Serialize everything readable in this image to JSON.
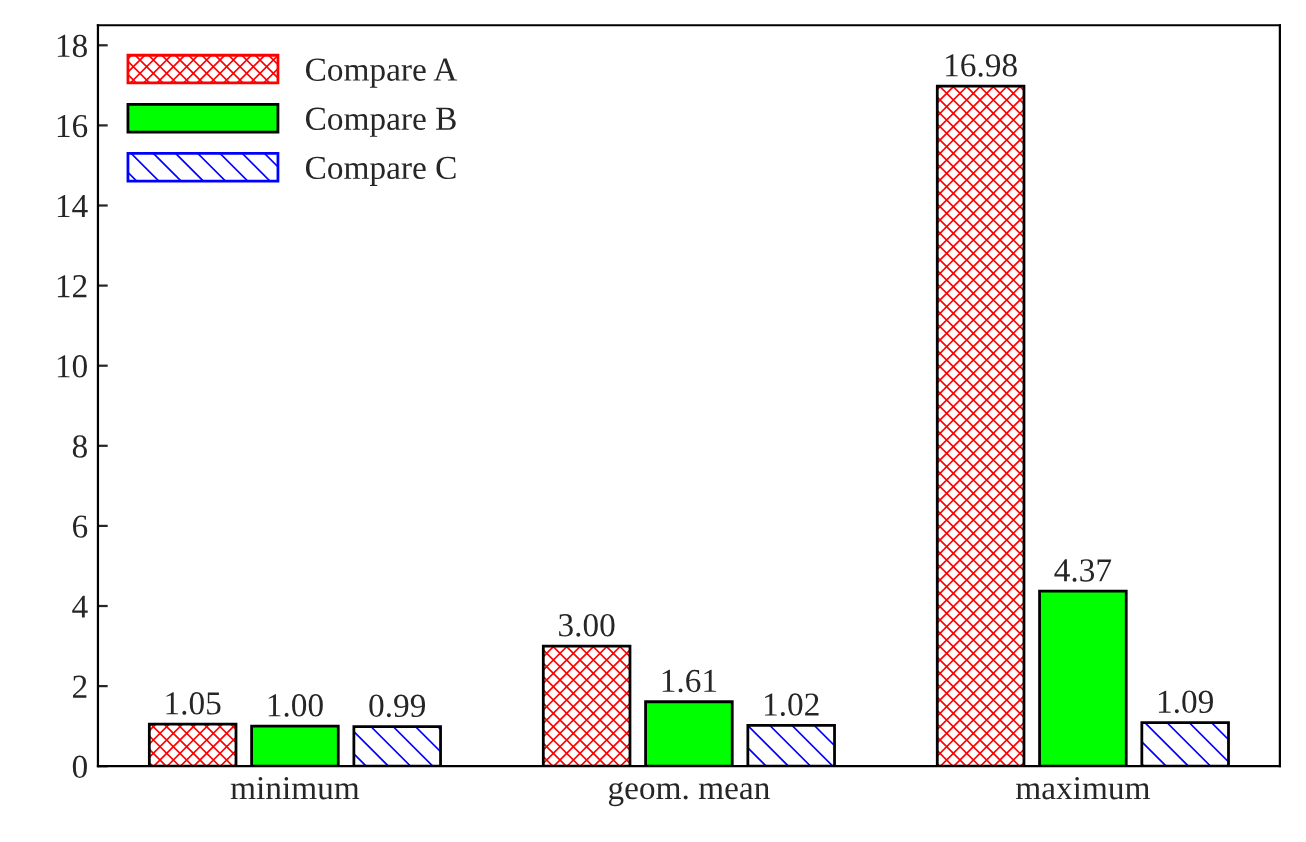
{
  "chart_data": {
    "type": "bar",
    "categories": [
      "minimum",
      "geom. mean",
      "maximum"
    ],
    "series": [
      {
        "name": "Compare A",
        "color": "#ff0000",
        "values": [
          1.05,
          3.0,
          16.98
        ],
        "value_labels": [
          "1.05",
          "3.00",
          "16.98"
        ]
      },
      {
        "name": "Compare B",
        "color": "#00ff00",
        "values": [
          1.0,
          1.61,
          4.37
        ],
        "value_labels": [
          "1.00",
          "1.61",
          "4.37"
        ]
      },
      {
        "name": "Compare C",
        "color": "#0000ff",
        "values": [
          0.99,
          1.02,
          1.09
        ],
        "value_labels": [
          "0.99",
          "1.02",
          "1.09"
        ]
      }
    ],
    "ylim": [
      0,
      18.5
    ],
    "yticks": [
      0,
      2,
      4,
      6,
      8,
      10,
      12,
      14,
      16,
      18
    ],
    "grid": false,
    "legend": "top left"
  }
}
